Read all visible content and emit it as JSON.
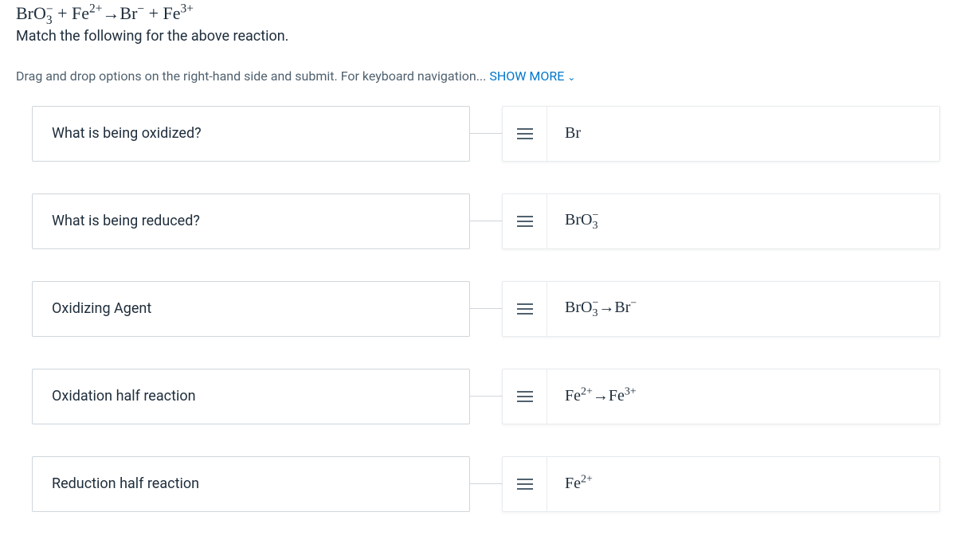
{
  "header": {
    "equation_html": "BrO<span class='subsup'><span class='top'>−</span><span class='bot'>3</span></span>&nbsp;+&nbsp;Fe<sup>2+</sup>→Br<sup>−</sup>&nbsp;+&nbsp;Fe<sup>3+</sup>",
    "instruction": "Match the following for the above reaction."
  },
  "hint": {
    "text_prefix": "Drag and drop options on the right-hand side and submit. For keyboard navigation... ",
    "show_more_label": "SHOW MORE"
  },
  "rows": [
    {
      "prompt": "What is being oxidized?",
      "answer_html": "Br"
    },
    {
      "prompt": "What is being reduced?",
      "answer_html": "BrO<span class='subsup'><span class='top'>−</span><span class='bot'>3</span></span>"
    },
    {
      "prompt": "Oxidizing Agent",
      "answer_html": "BrO<span class='subsup'><span class='top'>−</span><span class='bot'>3</span></span>→Br<sup>−</sup>"
    },
    {
      "prompt": "Oxidation half reaction",
      "answer_html": "Fe<sup>2+</sup>→Fe<sup>3+</sup>"
    },
    {
      "prompt": "Reduction half reaction",
      "answer_html": "Fe<sup>2+</sup>"
    }
  ],
  "style": {
    "text_color": "#1e2d3b",
    "muted_text_color": "#50616e",
    "link_color": "#0077cc",
    "border_color": "#cfd6db",
    "card_border_color": "#e7ebee",
    "background_color": "#ffffff"
  }
}
